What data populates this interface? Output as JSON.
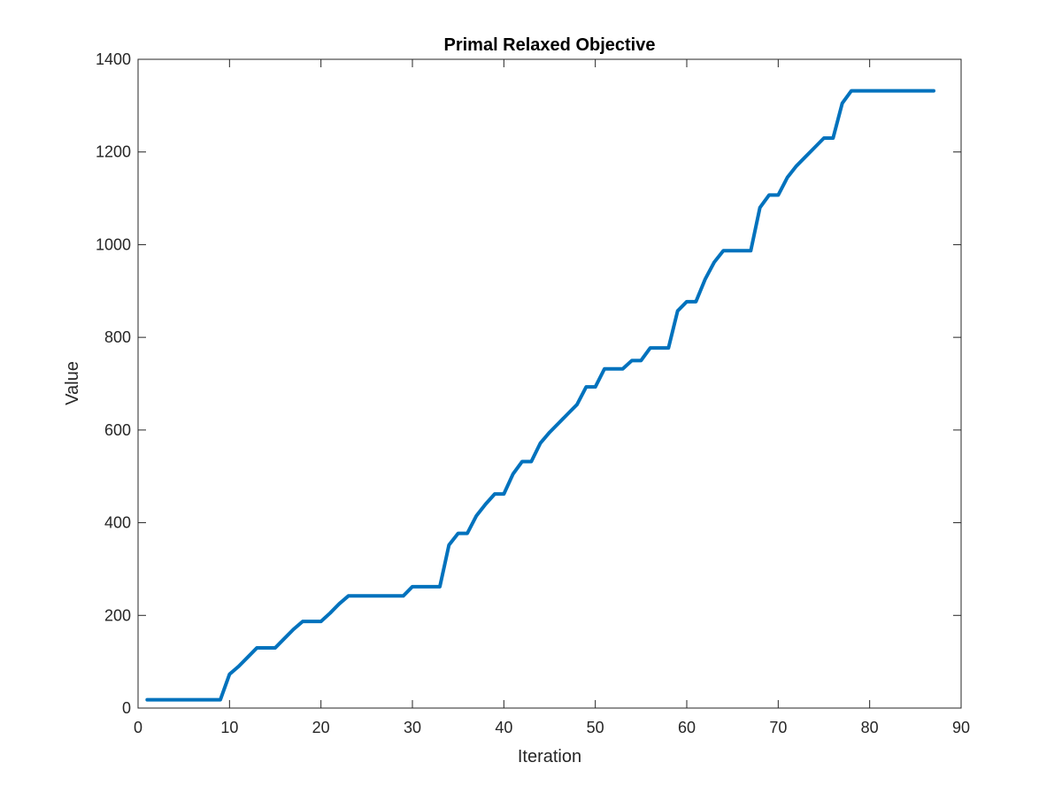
{
  "chart_data": {
    "type": "line",
    "title": "Primal Relaxed Objective",
    "xlabel": "Iteration",
    "ylabel": "Value",
    "xlim": [
      0,
      90
    ],
    "ylim": [
      0,
      1400
    ],
    "xticks": [
      0,
      10,
      20,
      30,
      40,
      50,
      60,
      70,
      80,
      90
    ],
    "yticks": [
      0,
      200,
      400,
      600,
      800,
      1000,
      1200,
      1400
    ],
    "grid": false,
    "line_color": "#0072BD",
    "series": [
      {
        "x": [
          1,
          2,
          3,
          4,
          5,
          6,
          7,
          8,
          9,
          10,
          11,
          12,
          13,
          14,
          15,
          16,
          17,
          18,
          19,
          20,
          21,
          22,
          23,
          24,
          25,
          26,
          27,
          28,
          29,
          30,
          31,
          32,
          33,
          34,
          35,
          36,
          37,
          38,
          39,
          40,
          41,
          42,
          43,
          44,
          45,
          46,
          47,
          48,
          49,
          50,
          51,
          52,
          53,
          54,
          55,
          56,
          57,
          58,
          59,
          60,
          61,
          62,
          63,
          64,
          65,
          66,
          67,
          68,
          69,
          70,
          71,
          72,
          73,
          74,
          75,
          76,
          77,
          78,
          79,
          80,
          81,
          82,
          83,
          84,
          85,
          86,
          87
        ],
        "y": [
          18,
          18,
          18,
          18,
          18,
          18,
          18,
          18,
          18,
          73,
          90,
          110,
          130,
          130,
          130,
          150,
          170,
          187,
          187,
          187,
          205,
          225,
          242,
          242,
          242,
          242,
          242,
          242,
          242,
          262,
          262,
          262,
          262,
          352,
          377,
          377,
          415,
          440,
          462,
          462,
          505,
          532,
          532,
          572,
          595,
          615,
          635,
          655,
          693,
          693,
          732,
          732,
          732,
          750,
          750,
          777,
          777,
          777,
          857,
          877,
          877,
          925,
          962,
          987,
          987,
          987,
          987,
          1080,
          1107,
          1107,
          1145,
          1170,
          1190,
          1210,
          1230,
          1230,
          1305,
          1332,
          1332,
          1332,
          1332,
          1332,
          1332,
          1332,
          1332,
          1332,
          1332
        ]
      }
    ]
  }
}
